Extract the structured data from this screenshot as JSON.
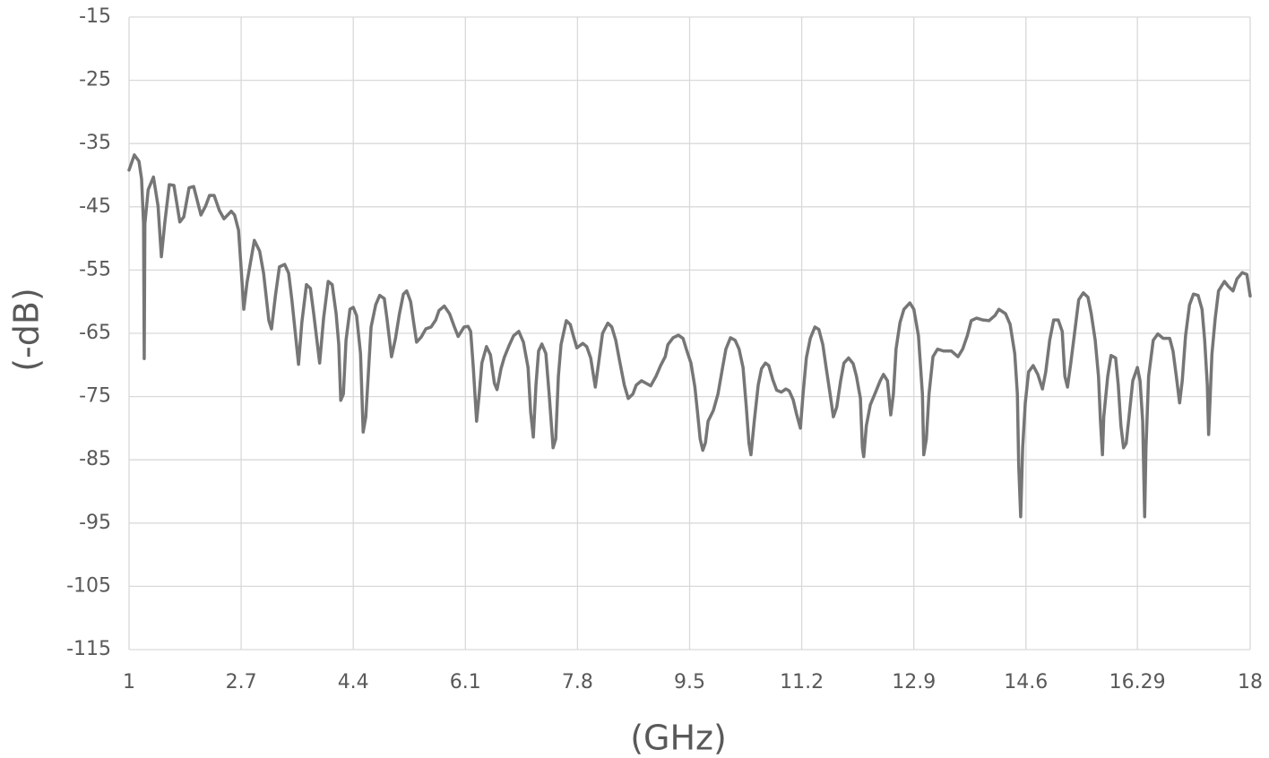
{
  "chart_data": {
    "type": "line",
    "x_label": "(GHz)",
    "y_label": "(-dB)",
    "xlim": [
      1,
      18
    ],
    "xticks": [
      1,
      2.7,
      4.4,
      6.1,
      7.8,
      9.5,
      11.2,
      12.9,
      14.6,
      16.29,
      18
    ],
    "ylim": [
      -115,
      -15
    ],
    "yticks": [
      -15,
      -25,
      -35,
      -45,
      -55,
      -65,
      -75,
      -85,
      -95,
      -105,
      -115
    ],
    "grid": true,
    "color": "#767676",
    "x": [
      1.0,
      1.08,
      1.15,
      1.19,
      1.22,
      1.23,
      1.24,
      1.29,
      1.37,
      1.44,
      1.49,
      1.54,
      1.61,
      1.68,
      1.77,
      1.83,
      1.91,
      1.98,
      2.09,
      2.16,
      2.22,
      2.29,
      2.37,
      2.44,
      2.55,
      2.6,
      2.66,
      2.7,
      2.74,
      2.79,
      2.9,
      2.98,
      3.04,
      3.12,
      3.16,
      3.22,
      3.28,
      3.36,
      3.42,
      3.47,
      3.57,
      3.62,
      3.69,
      3.75,
      3.8,
      3.89,
      3.95,
      4.02,
      4.08,
      4.14,
      4.18,
      4.21,
      4.25,
      4.29,
      4.35,
      4.4,
      4.45,
      4.51,
      4.55,
      4.59,
      4.63,
      4.67,
      4.74,
      4.8,
      4.87,
      4.91,
      4.98,
      5.04,
      5.1,
      5.16,
      5.21,
      5.27,
      5.32,
      5.36,
      5.43,
      5.5,
      5.58,
      5.65,
      5.7,
      5.78,
      5.86,
      5.93,
      5.99,
      6.08,
      6.14,
      6.18,
      6.22,
      6.27,
      6.31,
      6.35,
      6.42,
      6.48,
      6.54,
      6.58,
      6.64,
      6.69,
      6.76,
      6.83,
      6.91,
      6.98,
      7.05,
      7.09,
      7.13,
      7.17,
      7.21,
      7.26,
      7.32,
      7.37,
      7.43,
      7.47,
      7.51,
      7.55,
      7.63,
      7.69,
      7.74,
      7.79,
      7.88,
      7.94,
      8.0,
      8.07,
      8.12,
      8.18,
      8.26,
      8.32,
      8.38,
      8.43,
      8.51,
      8.57,
      8.64,
      8.69,
      8.77,
      8.84,
      8.91,
      8.99,
      9.06,
      9.13,
      9.17,
      9.25,
      9.33,
      9.4,
      9.45,
      9.52,
      9.58,
      9.62,
      9.66,
      9.7,
      9.74,
      9.78,
      9.86,
      9.93,
      10.0,
      10.05,
      10.12,
      10.19,
      10.25,
      10.31,
      10.36,
      10.4,
      10.43,
      10.48,
      10.54,
      10.59,
      10.65,
      10.7,
      10.76,
      10.82,
      10.89,
      10.96,
      11.01,
      11.07,
      11.12,
      11.18,
      11.22,
      11.27,
      11.33,
      11.4,
      11.46,
      11.52,
      11.57,
      11.63,
      11.68,
      11.73,
      11.79,
      11.84,
      11.91,
      11.98,
      12.03,
      12.09,
      12.12,
      12.14,
      12.18,
      12.24,
      12.32,
      12.39,
      12.44,
      12.5,
      12.55,
      12.59,
      12.63,
      12.69,
      12.75,
      12.84,
      12.9,
      12.97,
      13.03,
      13.05,
      13.09,
      13.13,
      13.19,
      13.26,
      13.35,
      13.47,
      13.57,
      13.64,
      13.71,
      13.77,
      13.85,
      13.95,
      14.04,
      14.13,
      14.19,
      14.29,
      14.36,
      14.43,
      14.47,
      14.49,
      14.52,
      14.55,
      14.59,
      14.64,
      14.71,
      14.78,
      14.85,
      14.9,
      14.96,
      15.02,
      15.09,
      15.15,
      15.19,
      15.23,
      15.28,
      15.34,
      15.4,
      15.47,
      15.54,
      15.59,
      15.65,
      15.7,
      15.73,
      15.76,
      15.78,
      15.84,
      15.89,
      15.96,
      16.0,
      16.04,
      16.08,
      16.12,
      16.17,
      16.22,
      16.29,
      16.33,
      16.37,
      16.4,
      16.42,
      16.46,
      16.53,
      16.6,
      16.68,
      16.78,
      16.83,
      16.88,
      16.93,
      16.97,
      17.02,
      17.08,
      17.14,
      17.21,
      17.27,
      17.31,
      17.35,
      17.37,
      17.42,
      17.47,
      17.52,
      17.61,
      17.67,
      17.74,
      17.8,
      17.88,
      17.95,
      18.0
    ],
    "values": [
      -39.2,
      -36.8,
      -37.8,
      -40.6,
      -47.7,
      -69.0,
      -47.7,
      -42.3,
      -40.3,
      -44.9,
      -52.9,
      -47.7,
      -41.5,
      -41.6,
      -47.4,
      -46.6,
      -42.0,
      -41.8,
      -46.3,
      -44.9,
      -43.2,
      -43.2,
      -45.6,
      -46.9,
      -45.7,
      -46.3,
      -48.7,
      -54.8,
      -61.2,
      -56.9,
      -50.3,
      -52.0,
      -55.5,
      -63.0,
      -64.3,
      -59.0,
      -54.5,
      -54.1,
      -55.5,
      -59.8,
      -69.9,
      -63.3,
      -57.3,
      -57.9,
      -61.9,
      -69.7,
      -62.6,
      -56.8,
      -57.3,
      -61.9,
      -66.8,
      -75.6,
      -74.6,
      -66.1,
      -61.2,
      -60.9,
      -62.2,
      -68.2,
      -80.6,
      -78.2,
      -71.1,
      -64.0,
      -60.5,
      -59.0,
      -59.5,
      -62.6,
      -68.7,
      -65.8,
      -61.9,
      -58.8,
      -58.3,
      -60.0,
      -63.6,
      -66.4,
      -65.6,
      -64.3,
      -64.0,
      -62.9,
      -61.4,
      -60.7,
      -61.9,
      -63.9,
      -65.5,
      -64.0,
      -63.9,
      -64.7,
      -70.4,
      -78.9,
      -74.6,
      -69.7,
      -67.1,
      -68.4,
      -72.9,
      -73.9,
      -70.6,
      -68.8,
      -67.0,
      -65.4,
      -64.7,
      -66.4,
      -70.4,
      -77.5,
      -81.4,
      -73.2,
      -67.8,
      -66.7,
      -68.2,
      -74.6,
      -83.1,
      -81.7,
      -71.8,
      -66.8,
      -63.0,
      -63.6,
      -65.5,
      -67.3,
      -66.6,
      -67.1,
      -68.9,
      -73.5,
      -69.7,
      -65.0,
      -63.4,
      -64.0,
      -66.1,
      -68.9,
      -73.2,
      -75.3,
      -74.6,
      -73.2,
      -72.5,
      -72.9,
      -73.3,
      -71.8,
      -70.1,
      -68.7,
      -66.8,
      -65.7,
      -65.3,
      -65.8,
      -67.5,
      -69.7,
      -73.5,
      -77.5,
      -81.7,
      -83.5,
      -82.3,
      -78.9,
      -77.2,
      -74.6,
      -70.4,
      -67.5,
      -65.7,
      -66.1,
      -67.5,
      -70.4,
      -76.7,
      -82.4,
      -84.2,
      -78.9,
      -73.2,
      -70.6,
      -69.7,
      -70.1,
      -72.3,
      -74.0,
      -74.3,
      -73.8,
      -74.1,
      -75.5,
      -77.7,
      -80.0,
      -74.6,
      -68.9,
      -65.8,
      -64.0,
      -64.4,
      -66.8,
      -70.4,
      -74.6,
      -78.2,
      -76.7,
      -72.5,
      -69.7,
      -68.9,
      -69.8,
      -71.8,
      -75.3,
      -83.1,
      -84.5,
      -79.6,
      -76.3,
      -74.3,
      -72.5,
      -71.5,
      -72.5,
      -77.9,
      -74.6,
      -67.5,
      -63.3,
      -61.2,
      -60.2,
      -61.2,
      -65.4,
      -74.6,
      -84.2,
      -81.7,
      -74.6,
      -68.7,
      -67.5,
      -67.8,
      -67.8,
      -68.7,
      -67.5,
      -65.4,
      -63.0,
      -62.6,
      -62.9,
      -63.0,
      -62.2,
      -61.2,
      -61.9,
      -63.6,
      -68.2,
      -74.6,
      -85.9,
      -94.0,
      -83.1,
      -76.0,
      -71.1,
      -70.1,
      -71.5,
      -73.8,
      -71.1,
      -66.1,
      -62.9,
      -62.9,
      -64.7,
      -71.8,
      -73.5,
      -69.7,
      -64.7,
      -59.7,
      -58.6,
      -59.3,
      -61.9,
      -66.1,
      -71.8,
      -78.9,
      -84.2,
      -78.2,
      -71.8,
      -68.5,
      -68.9,
      -73.2,
      -79.6,
      -83.1,
      -82.4,
      -77.5,
      -72.5,
      -70.4,
      -72.5,
      -78.9,
      -94.0,
      -83.1,
      -71.8,
      -66.1,
      -65.1,
      -65.8,
      -65.8,
      -67.8,
      -71.8,
      -76.0,
      -72.5,
      -65.4,
      -60.5,
      -58.8,
      -59.0,
      -61.2,
      -66.1,
      -73.2,
      -81.0,
      -68.3,
      -62.6,
      -58.3,
      -56.8,
      -57.6,
      -58.3,
      -56.4,
      -55.4,
      -55.7,
      -59.1
    ]
  }
}
